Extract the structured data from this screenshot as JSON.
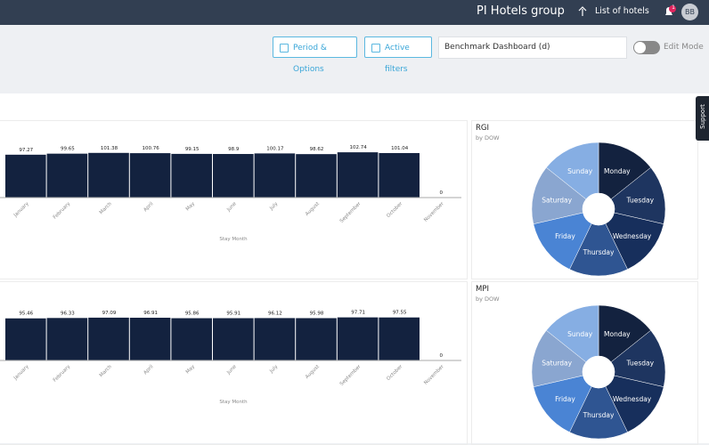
{
  "header": {
    "title": "PI Hotels group",
    "hotels_menu": "List of hotels",
    "notification_count": "1",
    "avatar": "BB"
  },
  "toolbar": {
    "period_button": "Period & Options",
    "filters_button": "Active filters",
    "dashboard_select": "Benchmark Dashboard (d)",
    "edit_mode": "Edit Mode"
  },
  "support_tab": "Support",
  "bar_charts": [
    {
      "type": "bar",
      "x_label": "Stay Month",
      "color": "#13223f",
      "categories": [
        "January",
        "February",
        "March",
        "April",
        "May",
        "June",
        "July",
        "August",
        "September",
        "October",
        "November"
      ],
      "values": [
        97.27,
        99.65,
        101.38,
        100.76,
        99.15,
        98.9,
        100.17,
        98.62,
        102.74,
        101.04,
        0
      ],
      "ylim": [
        0,
        105
      ]
    },
    {
      "type": "bar",
      "x_label": "Stay Month",
      "color": "#13223f",
      "categories": [
        "January",
        "February",
        "March",
        "April",
        "May",
        "June",
        "July",
        "August",
        "September",
        "October",
        "November"
      ],
      "values": [
        95.46,
        96.33,
        97.09,
        96.91,
        95.86,
        95.91,
        96.12,
        95.98,
        97.71,
        97.55,
        0
      ],
      "ylim": [
        0,
        105
      ]
    }
  ],
  "pie_charts": [
    {
      "type": "pie",
      "title": "RGI",
      "subtitle": "by DOW",
      "categories": [
        "Monday",
        "Tuesday",
        "Wednesday",
        "Thursday",
        "Friday",
        "Saturday",
        "Sunday"
      ],
      "values": [
        1,
        1,
        1,
        1,
        1,
        1,
        1
      ],
      "colors": [
        "#13223f",
        "#1e3560",
        "#172f5c",
        "#2f5592",
        "#4a84d4",
        "#8aa6d0",
        "#86aee3"
      ]
    },
    {
      "type": "pie",
      "title": "MPI",
      "subtitle": "by DOW",
      "categories": [
        "Monday",
        "Tuesday",
        "Wednesday",
        "Thursday",
        "Friday",
        "Saturday",
        "Sunday"
      ],
      "values": [
        1,
        1,
        1,
        1,
        1,
        1,
        1
      ],
      "colors": [
        "#13223f",
        "#1e3560",
        "#172f5c",
        "#2f5592",
        "#4a84d4",
        "#8aa6d0",
        "#86aee3"
      ]
    }
  ]
}
